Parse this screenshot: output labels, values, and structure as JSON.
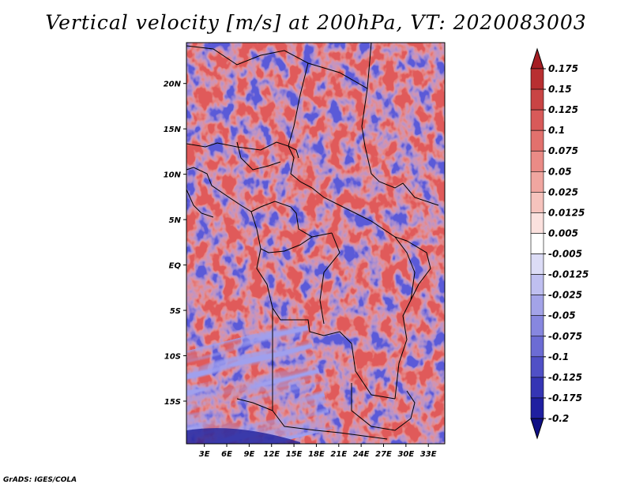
{
  "title": "Vertical velocity [m/s] at 200hPa, VT: 2020083003",
  "credit": "GrADS: IGES/COLA",
  "map": {
    "lat_labels": [
      "20N",
      "15N",
      "10N",
      "5N",
      "EQ",
      "5S",
      "10S",
      "15S"
    ],
    "lat_values": [
      20,
      15,
      10,
      5,
      0,
      -5,
      -10,
      -15
    ],
    "lat_range": [
      -19.7,
      24.5
    ],
    "lon_labels": [
      "3E",
      "6E",
      "9E",
      "12E",
      "15E",
      "18E",
      "21E",
      "24E",
      "27E",
      "30E",
      "33E"
    ],
    "lon_values": [
      3,
      6,
      9,
      12,
      15,
      18,
      21,
      24,
      27,
      30,
      33
    ],
    "lon_range": [
      0.6,
      35.2
    ]
  },
  "colorbar": {
    "labels": [
      "0.175",
      "0.15",
      "0.125",
      "0.1",
      "0.075",
      "0.05",
      "0.025",
      "0.0125",
      "0.005",
      "-0.005",
      "-0.0125",
      "-0.025",
      "-0.05",
      "-0.075",
      "-0.1",
      "-0.125",
      "-0.175",
      "-0.2"
    ],
    "colors": [
      "#a51e23",
      "#b82f31",
      "#c94444",
      "#d85a59",
      "#e2716d",
      "#ea8b86",
      "#f0a6a0",
      "#f6c3bd",
      "#fbe1de",
      "#ffffff",
      "#dcdcf6",
      "#bfbff0",
      "#a3a3e8",
      "#8787df",
      "#6c6cd4",
      "#5050c6",
      "#3535b4",
      "#1f1fa0",
      "#0f0f85"
    ]
  }
}
